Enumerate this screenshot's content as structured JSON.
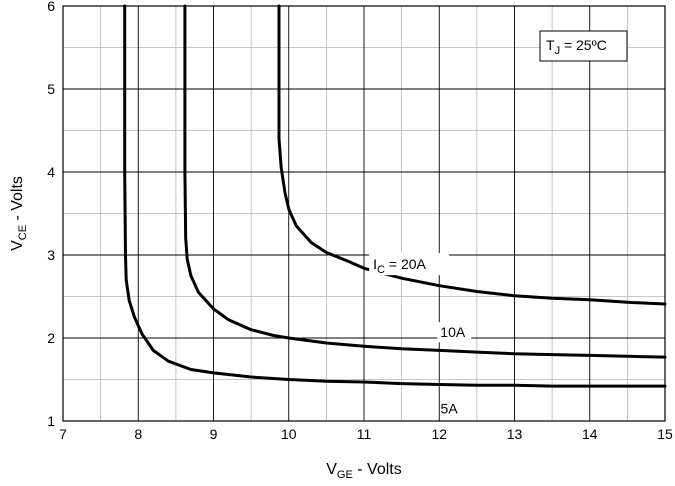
{
  "chart_data": {
    "type": "line",
    "title": "",
    "xlabel": {
      "main": "V",
      "sub": "GE",
      "rest": " - Volts"
    },
    "ylabel": {
      "main": "V",
      "sub": "CE",
      "rest": " - Volts"
    },
    "xlim": [
      7,
      15
    ],
    "ylim": [
      1,
      6
    ],
    "x_ticks": [
      "7",
      "8",
      "9",
      "10",
      "11",
      "12",
      "13",
      "14",
      "15"
    ],
    "y_ticks": [
      "1",
      "2",
      "3",
      "4",
      "5",
      "6"
    ],
    "grid": true,
    "minor_grid": true,
    "temperature_box": {
      "main": "T",
      "sub": "J",
      "rest": " = 25ºC"
    },
    "series": [
      {
        "name": "5A",
        "label": "5A",
        "x": [
          7.82,
          7.82,
          7.82,
          7.83,
          7.84,
          7.88,
          7.95,
          8.05,
          8.2,
          8.4,
          8.7,
          9.0,
          9.5,
          10.0,
          10.5,
          11.0,
          11.5,
          12.0,
          12.5,
          13.0,
          13.5,
          14.0,
          14.5,
          15.0
        ],
        "y": [
          6.0,
          5.0,
          4.0,
          3.0,
          2.7,
          2.45,
          2.25,
          2.05,
          1.85,
          1.72,
          1.62,
          1.58,
          1.53,
          1.5,
          1.48,
          1.47,
          1.45,
          1.44,
          1.43,
          1.43,
          1.42,
          1.42,
          1.42,
          1.42
        ]
      },
      {
        "name": "10A",
        "label": "10A",
        "x": [
          8.62,
          8.62,
          8.62,
          8.63,
          8.65,
          8.7,
          8.8,
          9.0,
          9.2,
          9.5,
          9.8,
          10.0,
          10.5,
          11.0,
          11.5,
          12.0,
          12.5,
          13.0,
          13.5,
          14.0,
          14.5,
          15.0
        ],
        "y": [
          6.0,
          5.0,
          4.0,
          3.2,
          2.95,
          2.75,
          2.55,
          2.35,
          2.22,
          2.1,
          2.03,
          2.0,
          1.94,
          1.9,
          1.87,
          1.85,
          1.83,
          1.81,
          1.8,
          1.79,
          1.78,
          1.77
        ]
      },
      {
        "name": "I_C = 20A",
        "label": "20A",
        "x": [
          9.87,
          9.87,
          9.87,
          9.9,
          9.95,
          10.0,
          10.1,
          10.3,
          10.5,
          10.8,
          11.0,
          11.5,
          12.0,
          12.5,
          13.0,
          13.5,
          14.0,
          14.5,
          15.0
        ],
        "y": [
          6.0,
          5.0,
          4.4,
          4.05,
          3.75,
          3.55,
          3.35,
          3.15,
          3.03,
          2.92,
          2.84,
          2.72,
          2.63,
          2.56,
          2.51,
          2.48,
          2.46,
          2.43,
          2.41
        ]
      }
    ],
    "annotations": [
      {
        "id": "ic",
        "main": "I",
        "sub": "C",
        "rest": " = 20A",
        "x": 11.6,
        "y": 2.95
      },
      {
        "id": "10a",
        "text": "10A",
        "x": 12.2,
        "y": 2.07
      },
      {
        "id": "5a",
        "text": "5A",
        "x": 12.15,
        "y": 1.15
      }
    ]
  }
}
